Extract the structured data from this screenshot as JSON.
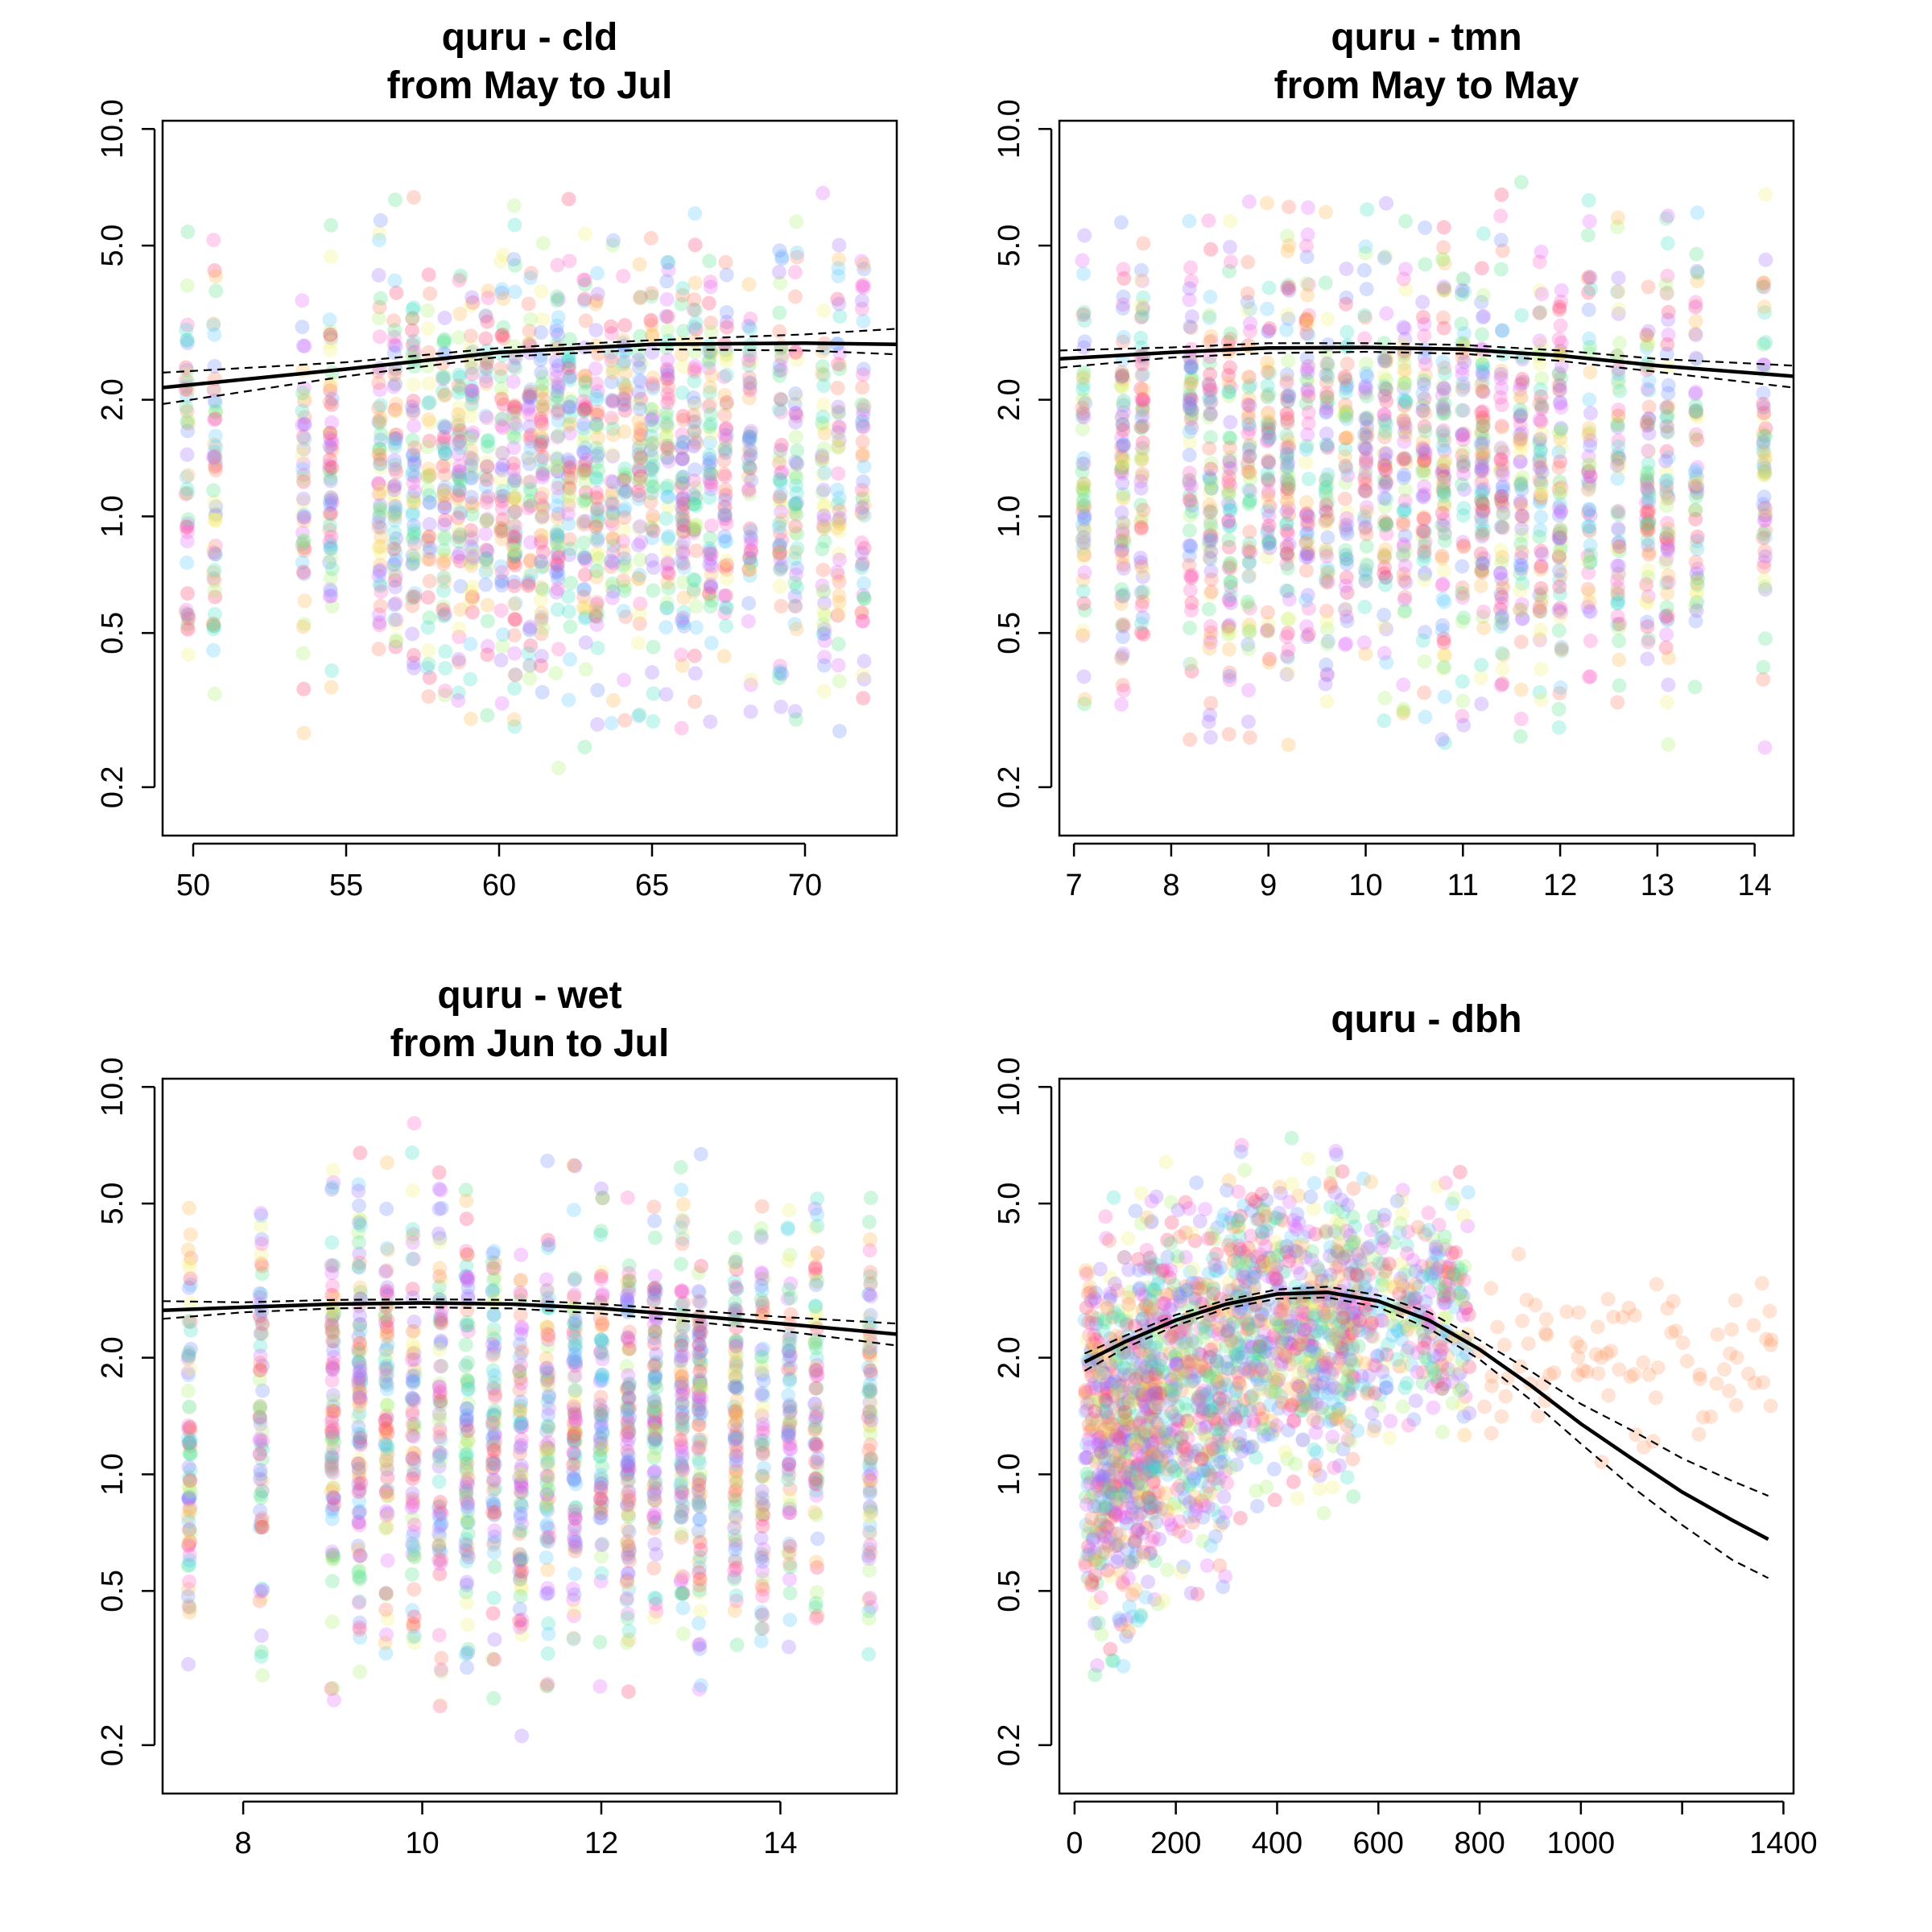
{
  "chart_data": [
    {
      "type": "scatter",
      "title": "quru - cld",
      "subtitle": "from May to Jul",
      "xlabel": "",
      "ylabel": "",
      "xlim": [
        49,
        73
      ],
      "ylim": [
        0.15,
        10.5
      ],
      "y_log": true,
      "x_ticks": [
        50,
        55,
        60,
        65,
        70
      ],
      "y_ticks": [
        0.2,
        0.5,
        1.0,
        2.0,
        5.0,
        10.0
      ],
      "grid": false,
      "x_columns": [
        49.8,
        50.7,
        53.6,
        54.5,
        56.1,
        56.6,
        57.2,
        57.7,
        58.2,
        58.7,
        59.1,
        59.6,
        60.1,
        60.5,
        61.0,
        61.4,
        61.9,
        62.3,
        62.8,
        63.2,
        63.7,
        64.1,
        64.6,
        65.0,
        65.5,
        66.0,
        66.4,
        66.9,
        67.4,
        68.2,
        69.2,
        69.7,
        70.6,
        71.1,
        71.9
      ],
      "y_range": [
        0.2,
        8.5
      ],
      "n_points": 1900,
      "seed": 11,
      "fit": {
        "x": [
          49,
          55,
          60,
          65,
          70,
          73
        ],
        "y": [
          2.15,
          2.4,
          2.65,
          2.78,
          2.8,
          2.78
        ]
      },
      "ci_upper": {
        "x": [
          49,
          55,
          60,
          65,
          70,
          73
        ],
        "y": [
          2.35,
          2.5,
          2.72,
          2.85,
          2.95,
          3.05
        ]
      },
      "ci_lower": {
        "x": [
          49,
          55,
          60,
          65,
          70,
          73
        ],
        "y": [
          1.95,
          2.3,
          2.58,
          2.7,
          2.68,
          2.62
        ]
      }
    },
    {
      "type": "scatter",
      "title": "quru - tmn",
      "subtitle": "from May to May",
      "xlabel": "",
      "ylabel": "",
      "xlim": [
        6.85,
        14.4
      ],
      "ylim": [
        0.15,
        10.5
      ],
      "y_log": true,
      "x_ticks": [
        7,
        8,
        9,
        10,
        11,
        12,
        13,
        14
      ],
      "y_ticks": [
        0.2,
        0.5,
        1.0,
        2.0,
        5.0,
        10.0
      ],
      "grid": false,
      "x_columns": [
        7.1,
        7.5,
        7.7,
        8.2,
        8.4,
        8.6,
        8.8,
        9.0,
        9.2,
        9.4,
        9.6,
        9.8,
        10.0,
        10.2,
        10.4,
        10.6,
        10.8,
        11.0,
        11.2,
        11.4,
        11.6,
        11.8,
        12.0,
        12.3,
        12.6,
        12.9,
        13.1,
        13.4,
        14.1
      ],
      "y_range": [
        0.2,
        8.5
      ],
      "n_points": 1900,
      "seed": 23,
      "fit": {
        "x": [
          6.85,
          8,
          9,
          10,
          11,
          12,
          13,
          14.4
        ],
        "y": [
          2.55,
          2.65,
          2.72,
          2.73,
          2.7,
          2.6,
          2.45,
          2.3
        ]
      },
      "ci_upper": {
        "x": [
          6.85,
          8,
          9,
          10,
          11,
          12,
          13,
          14.4
        ],
        "y": [
          2.68,
          2.73,
          2.8,
          2.8,
          2.77,
          2.68,
          2.55,
          2.45
        ]
      },
      "ci_lower": {
        "x": [
          6.85,
          8,
          9,
          10,
          11,
          12,
          13,
          14.4
        ],
        "y": [
          2.42,
          2.57,
          2.64,
          2.66,
          2.63,
          2.52,
          2.36,
          2.15
        ]
      }
    },
    {
      "type": "scatter",
      "title": "quru - wet",
      "subtitle": "from Jun to Jul",
      "xlabel": "",
      "ylabel": "",
      "xlim": [
        7.1,
        15.3
      ],
      "ylim": [
        0.15,
        10.5
      ],
      "y_log": true,
      "x_ticks": [
        8,
        10,
        12,
        14
      ],
      "y_ticks": [
        0.2,
        0.5,
        1.0,
        2.0,
        5.0,
        10.0
      ],
      "grid": false,
      "x_columns": [
        7.4,
        8.2,
        9.0,
        9.3,
        9.6,
        9.9,
        10.2,
        10.5,
        10.8,
        11.1,
        11.4,
        11.7,
        12.0,
        12.3,
        12.6,
        12.9,
        13.1,
        13.5,
        13.8,
        14.1,
        14.4,
        15.0
      ],
      "y_range": [
        0.2,
        8.5
      ],
      "n_points": 1900,
      "seed": 37,
      "fit": {
        "x": [
          7.1,
          8,
          9,
          10,
          11,
          12,
          13,
          14,
          15.3
        ],
        "y": [
          2.65,
          2.7,
          2.75,
          2.77,
          2.75,
          2.68,
          2.57,
          2.45,
          2.3
        ]
      },
      "ci_upper": {
        "x": [
          7.1,
          8,
          9,
          10,
          11,
          12,
          13,
          14,
          15.3
        ],
        "y": [
          2.8,
          2.78,
          2.82,
          2.83,
          2.82,
          2.75,
          2.65,
          2.55,
          2.45
        ]
      },
      "ci_lower": {
        "x": [
          7.1,
          8,
          9,
          10,
          11,
          12,
          13,
          14,
          15.3
        ],
        "y": [
          2.52,
          2.62,
          2.68,
          2.7,
          2.68,
          2.6,
          2.48,
          2.35,
          2.15
        ]
      }
    },
    {
      "type": "scatter",
      "title": "quru - dbh",
      "subtitle": "",
      "xlabel": "",
      "ylabel": "",
      "xlim": [
        -30,
        1420
      ],
      "ylim": [
        0.15,
        10.5
      ],
      "y_log": true,
      "x_ticks": [
        0,
        200,
        400,
        600,
        800,
        1000,
        1400
      ],
      "x_minor_ticks": [
        1200
      ],
      "y_ticks": [
        0.2,
        0.5,
        1.0,
        2.0,
        5.0,
        10.0
      ],
      "grid": false,
      "n_points": 2200,
      "seed": 51,
      "clusters": [
        {
          "x_range": [
            20,
            160
          ],
          "y_range": [
            0.25,
            6.5
          ],
          "weight": 0.28
        },
        {
          "x_range": [
            140,
            300
          ],
          "y_range": [
            0.35,
            7.5
          ],
          "weight": 0.22
        },
        {
          "x_range": [
            300,
            560
          ],
          "y_range": [
            0.65,
            8.5
          ],
          "weight": 0.32
        },
        {
          "x_range": [
            560,
            780
          ],
          "y_range": [
            1.0,
            7.0
          ],
          "weight": 0.14
        },
        {
          "x_range": [
            800,
            1380
          ],
          "y_range": [
            1.0,
            4.3
          ],
          "weight": 0.04,
          "color": "#ff9a66"
        }
      ],
      "fit": {
        "x": [
          20,
          100,
          200,
          300,
          400,
          500,
          600,
          700,
          800,
          900,
          1000,
          1100,
          1200,
          1300,
          1370
        ],
        "y": [
          1.95,
          2.2,
          2.5,
          2.75,
          2.92,
          2.95,
          2.8,
          2.5,
          2.1,
          1.7,
          1.35,
          1.1,
          0.9,
          0.76,
          0.68
        ]
      },
      "ci_upper": {
        "x": [
          20,
          100,
          200,
          300,
          400,
          500,
          600,
          700,
          800,
          900,
          1000,
          1100,
          1200,
          1300,
          1370
        ],
        "y": [
          2.05,
          2.28,
          2.58,
          2.82,
          3.0,
          3.05,
          2.9,
          2.62,
          2.22,
          1.85,
          1.52,
          1.3,
          1.1,
          0.96,
          0.88
        ]
      },
      "ci_lower": {
        "x": [
          20,
          100,
          200,
          300,
          400,
          500,
          600,
          700,
          800,
          900,
          1000,
          1100,
          1200,
          1300,
          1370
        ],
        "y": [
          1.85,
          2.12,
          2.42,
          2.68,
          2.84,
          2.86,
          2.7,
          2.38,
          1.98,
          1.56,
          1.2,
          0.93,
          0.74,
          0.6,
          0.54
        ]
      }
    }
  ],
  "colors": {
    "palette": [
      "#ff3b6b",
      "#ff7a5c",
      "#ffb347",
      "#f4f06e",
      "#a6ef6a",
      "#4fe38a",
      "#3fe0c8",
      "#5ac8ff",
      "#6f8dff",
      "#9f6bff",
      "#e066ff",
      "#ff5fc8"
    ],
    "point_opacity": 0.28,
    "line": "#000000"
  }
}
